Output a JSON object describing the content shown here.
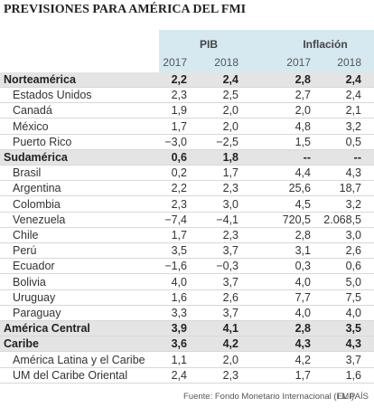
{
  "title": "PREVISIONES PARA AMÉRICA DEL FMI",
  "header": {
    "pib": "PIB",
    "inflacion": "Inflación",
    "years": [
      "2017",
      "2018",
      "2017",
      "2018"
    ]
  },
  "groups": [
    {
      "label": "Norteamérica",
      "values": [
        "2,2",
        "2,4",
        "2,8",
        "2,4"
      ],
      "rows": [
        {
          "label": "Estados Unidos",
          "values": [
            "2,3",
            "2,5",
            "2,7",
            "2,4"
          ]
        },
        {
          "label": "Canadá",
          "values": [
            "1,9",
            "2,0",
            "2,0",
            "2,1"
          ]
        },
        {
          "label": "México",
          "values": [
            "1,7",
            "2,0",
            "4,8",
            "3,2"
          ]
        },
        {
          "label": "Puerto Rico",
          "values": [
            "−3,0",
            "−2,5",
            "1,5",
            "0,5"
          ]
        }
      ]
    },
    {
      "label": "Sudamérica",
      "values": [
        "0,6",
        "1,8",
        "--",
        "--"
      ],
      "rows": [
        {
          "label": "Brasil",
          "values": [
            "0,2",
            "1,7",
            "4,4",
            "4,3"
          ]
        },
        {
          "label": "Argentina",
          "values": [
            "2,2",
            "2,3",
            "25,6",
            "18,7"
          ]
        },
        {
          "label": "Colombia",
          "values": [
            "2,3",
            "3,0",
            "4,5",
            "3,2"
          ]
        },
        {
          "label": "Venezuela",
          "values": [
            "−7,4",
            "−4,1",
            "720,5",
            "2.068,5"
          ]
        },
        {
          "label": "Chile",
          "values": [
            "1,7",
            "2,3",
            "2,8",
            "3,0"
          ]
        },
        {
          "label": "Perú",
          "values": [
            "3,5",
            "3,7",
            "3,1",
            "2,6"
          ]
        },
        {
          "label": "Ecuador",
          "values": [
            "−1,6",
            "−0,3",
            "0,3",
            "0,6"
          ]
        },
        {
          "label": "Bolivia",
          "values": [
            "4,0",
            "3,7",
            "4,0",
            "5,0"
          ]
        },
        {
          "label": "Uruguay",
          "values": [
            "1,6",
            "2,6",
            "7,7",
            "7,5"
          ]
        },
        {
          "label": "Paraguay",
          "values": [
            "3,3",
            "3,7",
            "4,0",
            "4,0"
          ]
        }
      ]
    },
    {
      "label": "América Central",
      "values": [
        "3,9",
        "4,1",
        "2,8",
        "3,5"
      ],
      "rows": []
    },
    {
      "label": "Caribe",
      "values": [
        "3,6",
        "4,2",
        "4,3",
        "4,3"
      ],
      "rows": [
        {
          "label": "América Latina y el Caribe",
          "values": [
            "1,1",
            "2,0",
            "4,2",
            "3,7"
          ]
        },
        {
          "label": "UM del Caribe Oriental",
          "values": [
            "2,4",
            "2,3",
            "1,7",
            "1,6"
          ]
        }
      ]
    }
  ],
  "footer": {
    "source": "Fuente: Fondo Monetario Internacional (FMI).",
    "brand": "EL PAÍS"
  }
}
